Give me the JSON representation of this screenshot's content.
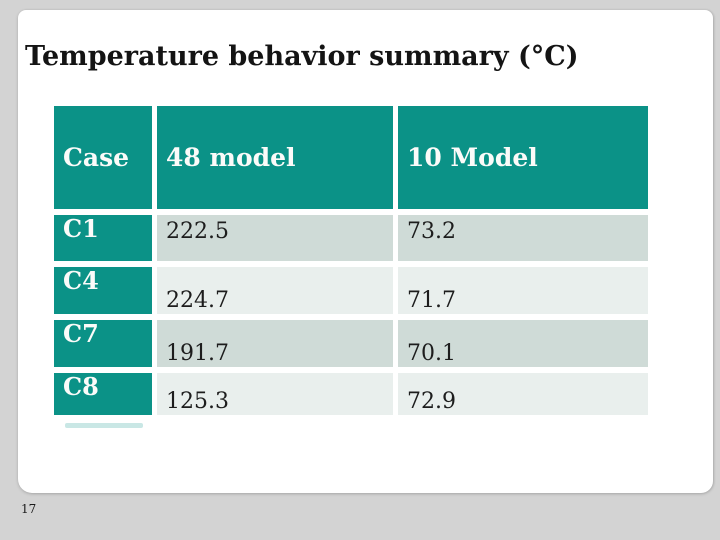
{
  "slide": {
    "title": "Temperature behavior summary (°C)",
    "page_number": "17"
  },
  "table": {
    "columns": [
      "Case",
      "48 model",
      "10 Model"
    ],
    "rows": [
      {
        "case": "C1",
        "model48": "222.5",
        "model10": "73.2"
      },
      {
        "case": "C4",
        "model48": "224.7",
        "model10": "71.7"
      },
      {
        "case": "C7",
        "model48": "191.7",
        "model10": "70.1"
      },
      {
        "case": "C8",
        "model48": "125.3",
        "model10": "72.9"
      }
    ]
  },
  "colors": {
    "accent_teal": "#0b9287",
    "row_dark": "#cfdbd7",
    "row_light": "#e9efed",
    "slide_background": "#d3d3d3",
    "panel_background": "#ffffff",
    "header_text": "#fbfbf9",
    "body_text": "#1d1d1d"
  }
}
